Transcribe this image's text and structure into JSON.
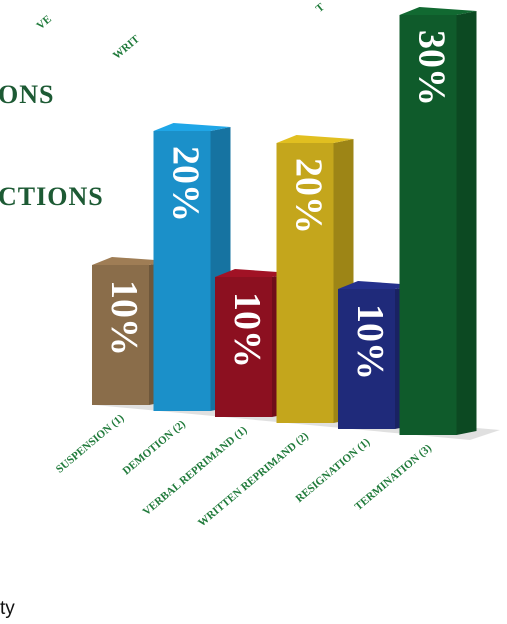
{
  "chart_data": {
    "type": "bar",
    "categories": [
      "SUSPENSION (1)",
      "DEMOTION (2)",
      "VERBAL REPRIMAND (1)",
      "WRITTEN REPRIMAND (2)",
      "RESIGNATION (1)",
      "TERMINATION (3)"
    ],
    "values": [
      10,
      20,
      10,
      20,
      10,
      30
    ],
    "value_labels": [
      "10%",
      "20%",
      "10%",
      "20%",
      "10%",
      "30%"
    ],
    "colors": [
      "#8a6d4a",
      "#1b90c9",
      "#8c1020",
      "#c4a61c",
      "#1f2a7a",
      "#0f5b2b"
    ],
    "top_labels": [
      "VE",
      "WRIT",
      "T"
    ],
    "annotations": [
      "ONS",
      "CTIONS",
      "ty"
    ]
  }
}
